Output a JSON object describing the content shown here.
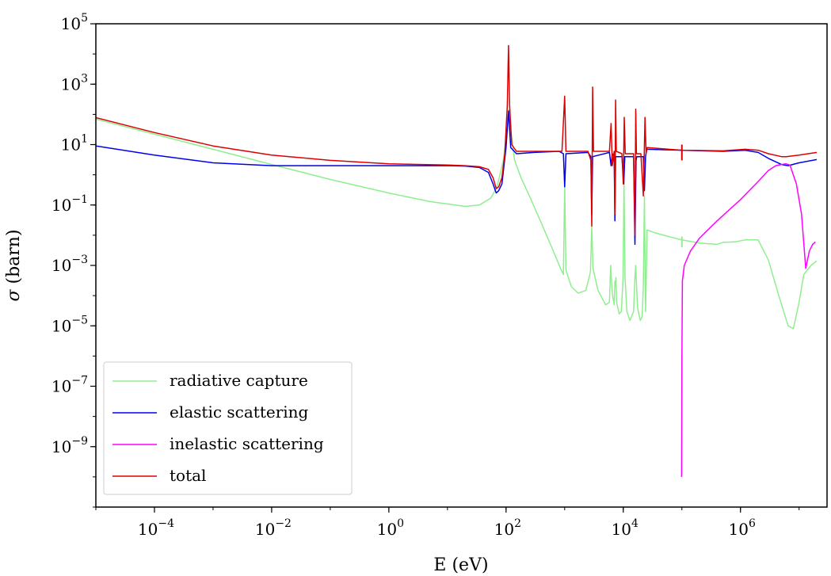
{
  "chart_data": {
    "type": "line",
    "title": "",
    "xlabel": "E (eV)",
    "ylabel_symbol": "σ",
    "ylabel_rest": " (barn)",
    "xscale": "log",
    "yscale": "log",
    "xlim": [
      1e-05,
      30000000.0
    ],
    "ylim": [
      1e-11,
      100000.0
    ],
    "x_tick_exponents": [
      -4,
      -2,
      0,
      2,
      4,
      6
    ],
    "y_tick_exponents": [
      -9,
      -7,
      -5,
      -3,
      -1,
      1,
      3,
      5
    ],
    "grid": false,
    "legend_position": "bottom-left",
    "series": [
      {
        "name": "radiative capture",
        "color": "#90ee90",
        "points": [
          [
            1e-05,
            70
          ],
          [
            0.0001,
            22
          ],
          [
            0.001,
            7
          ],
          [
            0.01,
            2.2
          ],
          [
            0.1,
            0.7
          ],
          [
            1,
            0.25
          ],
          [
            5,
            0.13
          ],
          [
            20,
            0.09
          ],
          [
            35,
            0.1
          ],
          [
            55,
            0.17
          ],
          [
            70,
            0.4
          ],
          [
            90,
            3
          ],
          [
            105,
            40
          ],
          [
            112,
            140
          ],
          [
            120,
            30
          ],
          [
            140,
            3
          ],
          [
            180,
            0.8
          ],
          [
            250,
            0.2
          ],
          [
            400,
            0.025
          ],
          [
            600,
            0.004
          ],
          [
            850,
            0.0008
          ],
          [
            950,
            0.0005
          ],
          [
            1000,
            0.45
          ],
          [
            1050,
            0.0007
          ],
          [
            1300,
            0.0002
          ],
          [
            1700,
            0.00012
          ],
          [
            2300,
            0.00015
          ],
          [
            2750,
            0.0006
          ],
          [
            2900,
            0.02
          ],
          [
            3050,
            0.0008
          ],
          [
            3700,
            0.00015
          ],
          [
            5000,
            5e-05
          ],
          [
            5800,
            6e-05
          ],
          [
            6100,
            0.001
          ],
          [
            6300,
            0.0003
          ],
          [
            6600,
            0.0001
          ],
          [
            7000,
            5e-05
          ],
          [
            7200,
            0.0003
          ],
          [
            7300,
            0.0002
          ],
          [
            7500,
            0.0004
          ],
          [
            7700,
            6e-05
          ],
          [
            8500,
            2.5e-05
          ],
          [
            9300,
            3e-05
          ],
          [
            9900,
            0.0004
          ],
          [
            10300,
            0.6
          ],
          [
            10700,
            0.0004
          ],
          [
            11500,
            3e-05
          ],
          [
            13000,
            1.5e-05
          ],
          [
            15000,
            3e-05
          ],
          [
            15800,
            0.0004
          ],
          [
            16300,
            0.001
          ],
          [
            16700,
            0.0003
          ],
          [
            17500,
            4e-05
          ],
          [
            19500,
            1.5e-05
          ],
          [
            21000,
            2e-05
          ],
          [
            22000,
            0.0002
          ],
          [
            23000,
            0.2
          ],
          [
            24000,
            3e-05
          ],
          [
            24500,
            0.0002
          ],
          [
            25500,
            0.015
          ],
          [
            35000,
            0.012
          ],
          [
            60000,
            0.009
          ],
          [
            100000,
            0.007
          ],
          [
            200000,
            0.0055
          ],
          [
            400000,
            0.005
          ],
          [
            500000,
            0.0058
          ],
          [
            800000,
            0.006
          ],
          [
            1200000,
            0.007
          ],
          [
            2000000,
            0.007
          ],
          [
            3000000,
            0.0015
          ],
          [
            4500000,
            0.0001
          ],
          [
            6500000,
            1e-05
          ],
          [
            8000000,
            8e-06
          ],
          [
            10000000,
            6e-05
          ],
          [
            12000000,
            0.0005
          ],
          [
            16000000,
            0.001
          ],
          [
            20000000,
            0.0014
          ]
        ]
      },
      {
        "name": "elastic scattering",
        "color": "#0000ee",
        "points": [
          [
            1e-05,
            9
          ],
          [
            0.0001,
            4.5
          ],
          [
            0.001,
            2.5
          ],
          [
            0.01,
            2
          ],
          [
            1,
            2
          ],
          [
            10,
            2
          ],
          [
            20,
            1.95
          ],
          [
            35,
            1.75
          ],
          [
            50,
            1.2
          ],
          [
            60,
            0.5
          ],
          [
            68,
            0.25
          ],
          [
            75,
            0.3
          ],
          [
            85,
            0.5
          ],
          [
            100,
            8
          ],
          [
            110,
            130
          ],
          [
            120,
            8
          ],
          [
            150,
            5
          ],
          [
            300,
            5.5
          ],
          [
            800,
            6
          ],
          [
            950,
            5
          ],
          [
            1000,
            0.4
          ],
          [
            1050,
            5
          ],
          [
            2500,
            5.5
          ],
          [
            2800,
            4
          ],
          [
            2900,
            0.05
          ],
          [
            3000,
            4
          ],
          [
            5800,
            5.5
          ],
          [
            6200,
            2
          ],
          [
            6500,
            5
          ],
          [
            7000,
            4
          ],
          [
            7200,
            0.03
          ],
          [
            7400,
            4
          ],
          [
            9500,
            4
          ],
          [
            10200,
            0.5
          ],
          [
            10600,
            4
          ],
          [
            15000,
            4
          ],
          [
            15800,
            0.005
          ],
          [
            16500,
            3
          ],
          [
            17000,
            4
          ],
          [
            22000,
            4
          ],
          [
            23000,
            0.3
          ],
          [
            24000,
            4
          ],
          [
            25000,
            7
          ],
          [
            100000,
            6.5
          ],
          [
            500000,
            6
          ],
          [
            1200000,
            6.5
          ],
          [
            2000000,
            5.5
          ],
          [
            3000000,
            3.5
          ],
          [
            5000000,
            2.2
          ],
          [
            6500000,
            2.0
          ],
          [
            10000000,
            2.5
          ],
          [
            20000000,
            3.2
          ]
        ]
      },
      {
        "name": "inelastic scattering",
        "color": "#ff00ff",
        "points": [
          [
            99000,
            1e-10
          ],
          [
            100000,
            1e-06
          ],
          [
            102000,
            0.0003
          ],
          [
            110000,
            0.001
          ],
          [
            140000,
            0.003
          ],
          [
            200000,
            0.008
          ],
          [
            400000,
            0.03
          ],
          [
            1000000,
            0.15
          ],
          [
            2000000,
            0.6
          ],
          [
            3000000,
            1.4
          ],
          [
            4000000,
            2
          ],
          [
            5000000,
            2.2
          ],
          [
            6000000,
            2.3
          ],
          [
            7000000,
            2.1
          ],
          [
            9000000,
            0.5
          ],
          [
            11000000,
            0.05
          ],
          [
            13000000,
            0.0008
          ],
          [
            15000000,
            0.003
          ],
          [
            17000000,
            0.005
          ],
          [
            19000000,
            0.006
          ]
        ]
      },
      {
        "name": "total",
        "color": "#dd0000",
        "points": [
          [
            1e-05,
            78
          ],
          [
            0.0001,
            25
          ],
          [
            0.001,
            9
          ],
          [
            0.01,
            4.5
          ],
          [
            0.1,
            3
          ],
          [
            1,
            2.3
          ],
          [
            10,
            2.1
          ],
          [
            20,
            2
          ],
          [
            35,
            1.85
          ],
          [
            50,
            1.5
          ],
          [
            60,
            0.8
          ],
          [
            68,
            0.35
          ],
          [
            75,
            0.4
          ],
          [
            85,
            0.8
          ],
          [
            95,
            5
          ],
          [
            105,
            200
          ],
          [
            110,
            19000
          ],
          [
            115,
            200
          ],
          [
            125,
            10
          ],
          [
            150,
            6
          ],
          [
            400,
            6
          ],
          [
            900,
            6
          ],
          [
            1000,
            400
          ],
          [
            1050,
            6
          ],
          [
            2500,
            6
          ],
          [
            2800,
            3
          ],
          [
            2900,
            0.02
          ],
          [
            3000,
            800
          ],
          [
            3100,
            6
          ],
          [
            5800,
            6
          ],
          [
            6200,
            50
          ],
          [
            6500,
            2
          ],
          [
            7000,
            6
          ],
          [
            7200,
            0.05
          ],
          [
            7400,
            300
          ],
          [
            7600,
            6
          ],
          [
            9500,
            5
          ],
          [
            10000,
            0.5
          ],
          [
            10400,
            80
          ],
          [
            10800,
            5
          ],
          [
            15000,
            5
          ],
          [
            15800,
            0.01
          ],
          [
            16300,
            150
          ],
          [
            16800,
            5
          ],
          [
            20000,
            5
          ],
          [
            22000,
            0.2
          ],
          [
            23500,
            80
          ],
          [
            24500,
            5
          ],
          [
            25500,
            8
          ],
          [
            100000,
            6.5
          ],
          [
            500000,
            6.2
          ],
          [
            1200000,
            7
          ],
          [
            2000000,
            6.5
          ],
          [
            3000000,
            5
          ],
          [
            5000000,
            4
          ],
          [
            6000000,
            4
          ],
          [
            10000000,
            4.5
          ],
          [
            20000000,
            5.5
          ]
        ]
      }
    ],
    "marker": {
      "x": 100000,
      "y_low": 3,
      "y_high": 10,
      "color": "#dd0000"
    },
    "marker_green": {
      "x": 100000,
      "y_low": 0.004,
      "y_high": 0.009,
      "color": "#90ee90"
    }
  }
}
